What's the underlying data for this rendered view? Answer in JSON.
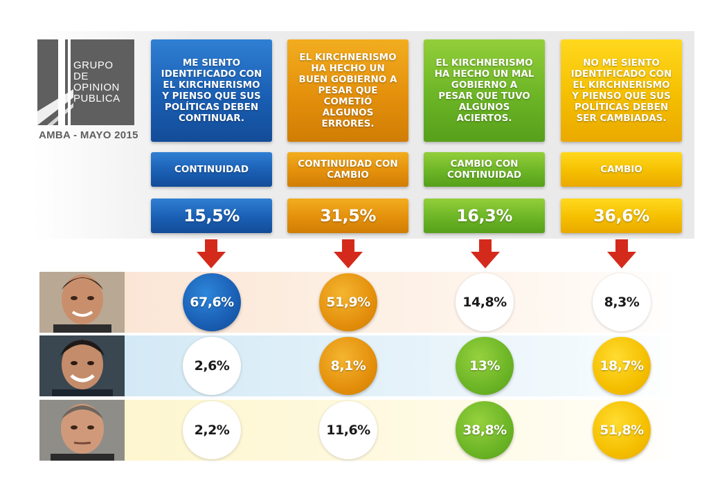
{
  "logo": {
    "lines": [
      "GRUPO",
      "DE",
      "OPINION",
      "PUBLICA"
    ]
  },
  "region": "AMBA - MAYO 2015",
  "colors": {
    "continuidad": "#1a5fb4",
    "continuidad_con_cambio": "#e4900c",
    "cambio_con_continuidad": "#6cb526",
    "cambio": "#f5bf00",
    "arrow": "#d42a1c"
  },
  "chart_data": {
    "type": "table",
    "columns": [
      {
        "description": "ME SIENTO IDENTIFICADO CON EL KIRCHNERISMO Y PIENSO QUE SUS POLÍTICAS DEBEN CONTINUAR.",
        "label": "CONTINUIDAD",
        "share": "15,5%"
      },
      {
        "description": "EL KIRCHNERISMO HA HECHO UN BUEN GOBIERNO A PESAR QUE COMETIÓ ALGUNOS ERRORES.",
        "label": "CONTINUIDAD CON CAMBIO",
        "share": "31,5%"
      },
      {
        "description": "EL KIRCHNERISMO HA HECHO UN MAL GOBIERNO A PESAR QUE TUVO ALGUNOS ACIERTOS.",
        "label": "CAMBIO CON CONTINUIDAD",
        "share": "16,3%"
      },
      {
        "description": "NO ME SIENTO IDENTIFICADO CON EL KIRCHNERISMO Y PIENSO QUE SUS POLÍTICAS DEBEN SER CAMBIADAS.",
        "label": "CAMBIO",
        "share": "36,6%"
      }
    ],
    "rows": [
      {
        "values": [
          "67,6%",
          "51,9%",
          "14,8%",
          "8,3%"
        ],
        "highlighted": [
          true,
          true,
          false,
          false
        ]
      },
      {
        "values": [
          "2,6%",
          "8,1%",
          "13%",
          "18,7%"
        ],
        "highlighted": [
          false,
          true,
          true,
          true
        ]
      },
      {
        "values": [
          "2,2%",
          "11,6%",
          "38,8%",
          "51,8%"
        ],
        "highlighted": [
          false,
          false,
          true,
          true
        ]
      }
    ]
  }
}
